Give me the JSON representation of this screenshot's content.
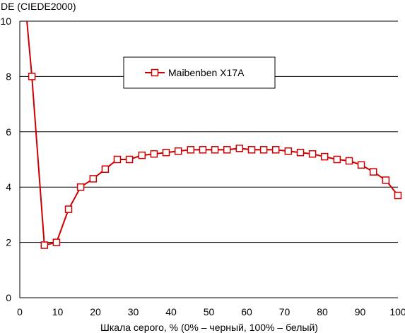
{
  "chart_data": {
    "type": "line",
    "title": "",
    "ylabel": "DE (CIEDE2000)",
    "xlabel": "Шкала серого, % (0% – черный, 100% – белый)",
    "xlim": [
      0,
      100
    ],
    "ylim": [
      0,
      10
    ],
    "x_ticks": [
      "0",
      "10",
      "20",
      "30",
      "40",
      "50",
      "60",
      "70",
      "80",
      "90",
      "100"
    ],
    "y_ticks": [
      "0",
      "2",
      "4",
      "6",
      "8",
      "10"
    ],
    "grid": "horizontal",
    "legend_position": "top-center",
    "colors": {
      "series": "#cc0000",
      "grid": "#000000",
      "marker_fill": "#ffffff"
    },
    "series": [
      {
        "name": "Maibenben X17A",
        "x": [
          1.5,
          3.2,
          6.5,
          9.7,
          12.9,
          16.1,
          19.4,
          22.6,
          25.8,
          29.0,
          32.3,
          35.5,
          38.7,
          41.9,
          45.2,
          48.4,
          51.6,
          54.8,
          58.1,
          61.3,
          64.5,
          67.7,
          71.0,
          74.2,
          77.4,
          80.6,
          83.9,
          87.1,
          90.3,
          93.5,
          96.8,
          100.0
        ],
        "values": [
          10.6,
          8.0,
          1.9,
          2.0,
          3.2,
          4.0,
          4.3,
          4.65,
          5.0,
          5.0,
          5.15,
          5.2,
          5.25,
          5.3,
          5.35,
          5.35,
          5.35,
          5.35,
          5.4,
          5.35,
          5.35,
          5.35,
          5.3,
          5.25,
          5.2,
          5.1,
          5.0,
          4.95,
          4.8,
          4.55,
          4.25,
          3.7
        ]
      }
    ]
  }
}
